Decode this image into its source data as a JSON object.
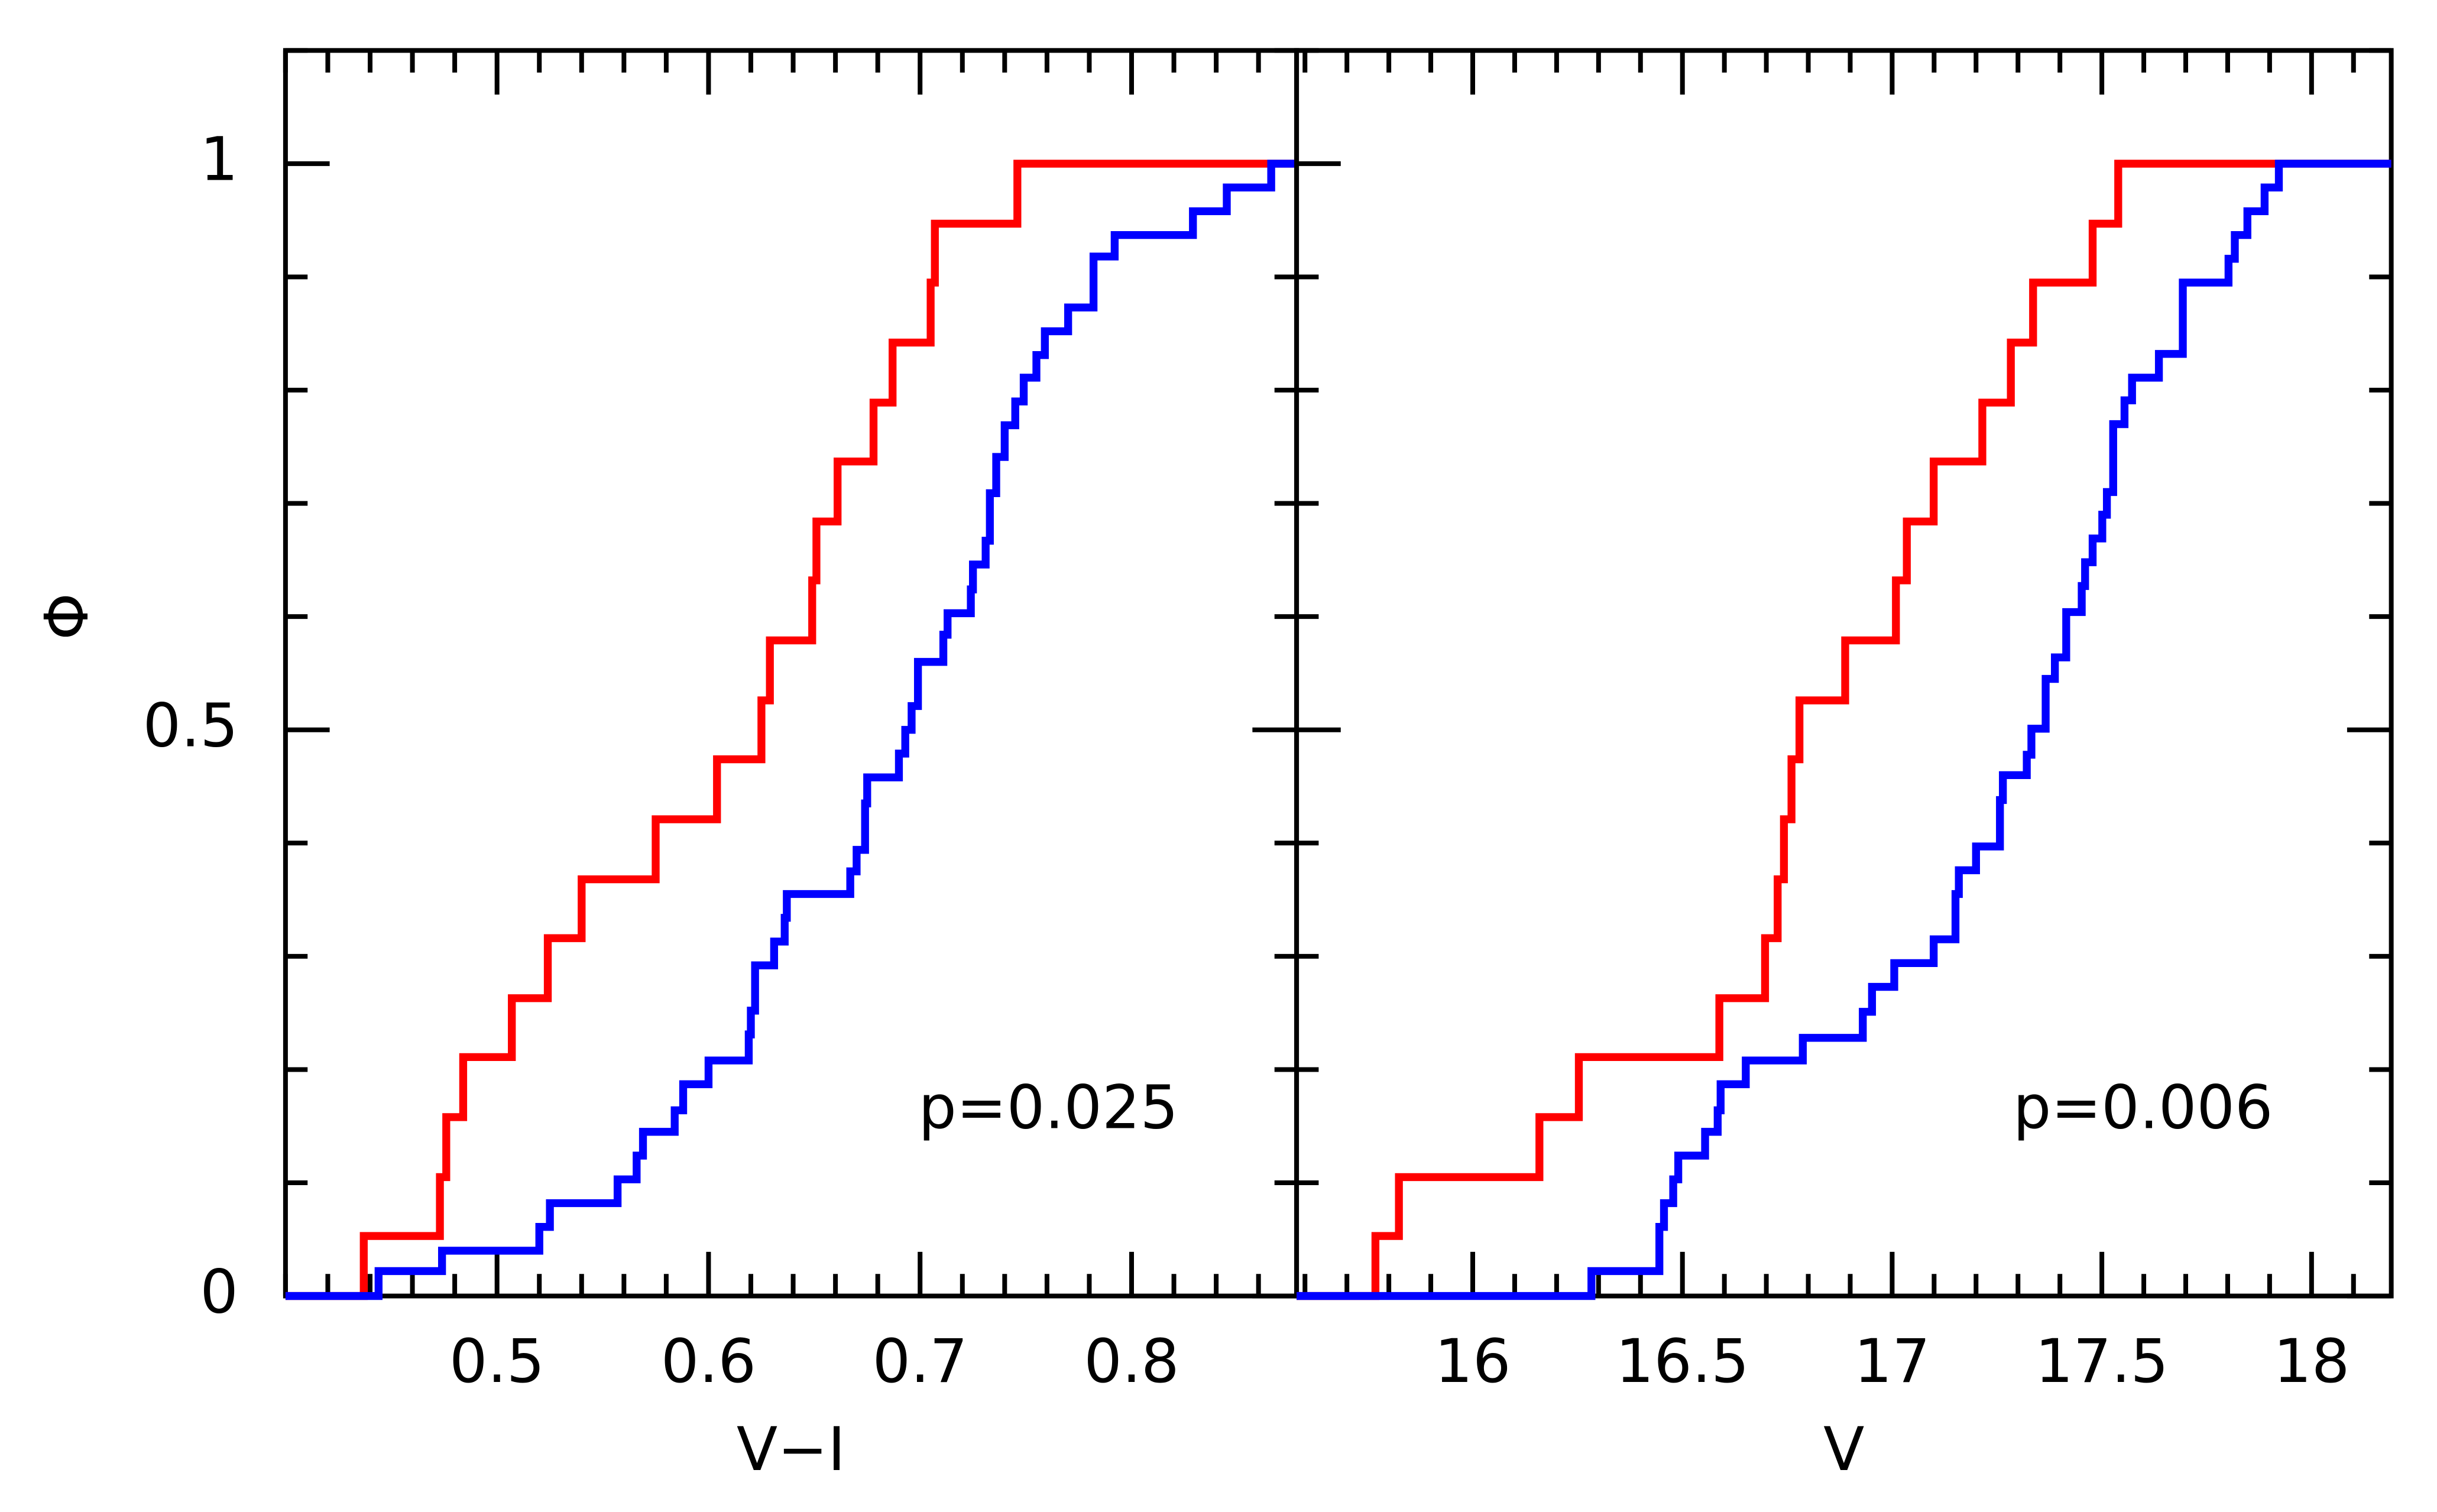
{
  "chart_data": [
    {
      "type": "step",
      "xlabel": "V−I",
      "ylabel": "Φ",
      "annotation": "p=0.025",
      "xlim": [
        0.4,
        0.878
      ],
      "ylim": [
        0,
        1.1
      ],
      "xticks": [
        0.5,
        0.6,
        0.7,
        0.8
      ],
      "yticks": [
        0,
        0.5,
        1
      ],
      "xminor_step": 0.02,
      "yminor_step": 0.1,
      "series": [
        {
          "color": "#ff0000",
          "x": [
            0.437,
            0.473,
            0.476,
            0.484,
            0.507,
            0.524,
            0.54,
            0.575,
            0.604,
            0.625,
            0.629,
            0.649,
            0.651,
            0.661,
            0.678,
            0.687,
            0.705,
            0.707,
            0.746
          ],
          "values": [
            0.053,
            0.105,
            0.158,
            0.211,
            0.263,
            0.316,
            0.368,
            0.421,
            0.474,
            0.526,
            0.579,
            0.632,
            0.684,
            0.737,
            0.789,
            0.842,
            0.895,
            0.947,
            1
          ]
        },
        {
          "color": "#0000ff",
          "x": [
            0.444,
            0.474,
            0.52,
            0.525,
            0.557,
            0.566,
            0.569,
            0.584,
            0.588,
            0.6,
            0.619,
            0.62,
            0.622,
            0.631,
            0.636,
            0.637,
            0.667,
            0.67,
            0.674,
            0.675,
            0.69,
            0.693,
            0.696,
            0.699,
            0.711,
            0.713,
            0.724,
            0.725,
            0.731,
            0.733,
            0.736,
            0.74,
            0.745,
            0.749,
            0.755,
            0.759,
            0.77,
            0.782,
            0.792,
            0.829,
            0.845,
            0.866
          ],
          "values": [
            0.022,
            0.04,
            0.061,
            0.082,
            0.103,
            0.124,
            0.145,
            0.164,
            0.187,
            0.208,
            0.231,
            0.252,
            0.292,
            0.313,
            0.334,
            0.355,
            0.375,
            0.394,
            0.435,
            0.458,
            0.479,
            0.5,
            0.521,
            0.56,
            0.584,
            0.603,
            0.624,
            0.646,
            0.667,
            0.709,
            0.741,
            0.769,
            0.79,
            0.811,
            0.831,
            0.852,
            0.873,
            0.918,
            0.937,
            0.958,
            0.979,
            1
          ]
        }
      ]
    },
    {
      "type": "step",
      "xlabel": "V",
      "annotation": "p=0.006",
      "sharey": true,
      "xlim": [
        15.58,
        18.19
      ],
      "ylim": [
        0,
        1.1
      ],
      "xticks": [
        16,
        16.5,
        17,
        17.5,
        18
      ],
      "xminor_step": 0.1,
      "yminor_step": 0.1,
      "series": [
        {
          "color": "#ff0000",
          "x": [
            15.768,
            15.824,
            16.159,
            16.253,
            16.588,
            16.697,
            16.727,
            16.742,
            16.76,
            16.779,
            16.888,
            17.009,
            17.035,
            17.099,
            17.215,
            17.283,
            17.336,
            17.478,
            17.539
          ],
          "values": [
            0.053,
            0.105,
            0.158,
            0.211,
            0.263,
            0.316,
            0.368,
            0.421,
            0.474,
            0.526,
            0.579,
            0.632,
            0.684,
            0.737,
            0.789,
            0.842,
            0.895,
            0.947,
            1
          ]
        },
        {
          "color": "#0000ff",
          "x": [
            16.283,
            16.445,
            16.456,
            16.478,
            16.49,
            16.554,
            16.584,
            16.591,
            16.651,
            16.787,
            16.93,
            16.952,
            17.005,
            17.099,
            17.151,
            17.159,
            17.2,
            17.257,
            17.264,
            17.321,
            17.332,
            17.366,
            17.388,
            17.415,
            17.452,
            17.46,
            17.478,
            17.501,
            17.512,
            17.527,
            17.554,
            17.572,
            17.636,
            17.693,
            17.802,
            17.817,
            17.847,
            17.888,
            17.922
          ],
          "values": [
            0.022,
            0.061,
            0.082,
            0.103,
            0.124,
            0.145,
            0.164,
            0.187,
            0.208,
            0.228,
            0.251,
            0.273,
            0.294,
            0.315,
            0.355,
            0.376,
            0.397,
            0.438,
            0.46,
            0.478,
            0.501,
            0.545,
            0.564,
            0.604,
            0.627,
            0.648,
            0.669,
            0.69,
            0.71,
            0.77,
            0.791,
            0.811,
            0.832,
            0.895,
            0.916,
            0.937,
            0.958,
            0.979,
            1
          ]
        }
      ]
    }
  ]
}
